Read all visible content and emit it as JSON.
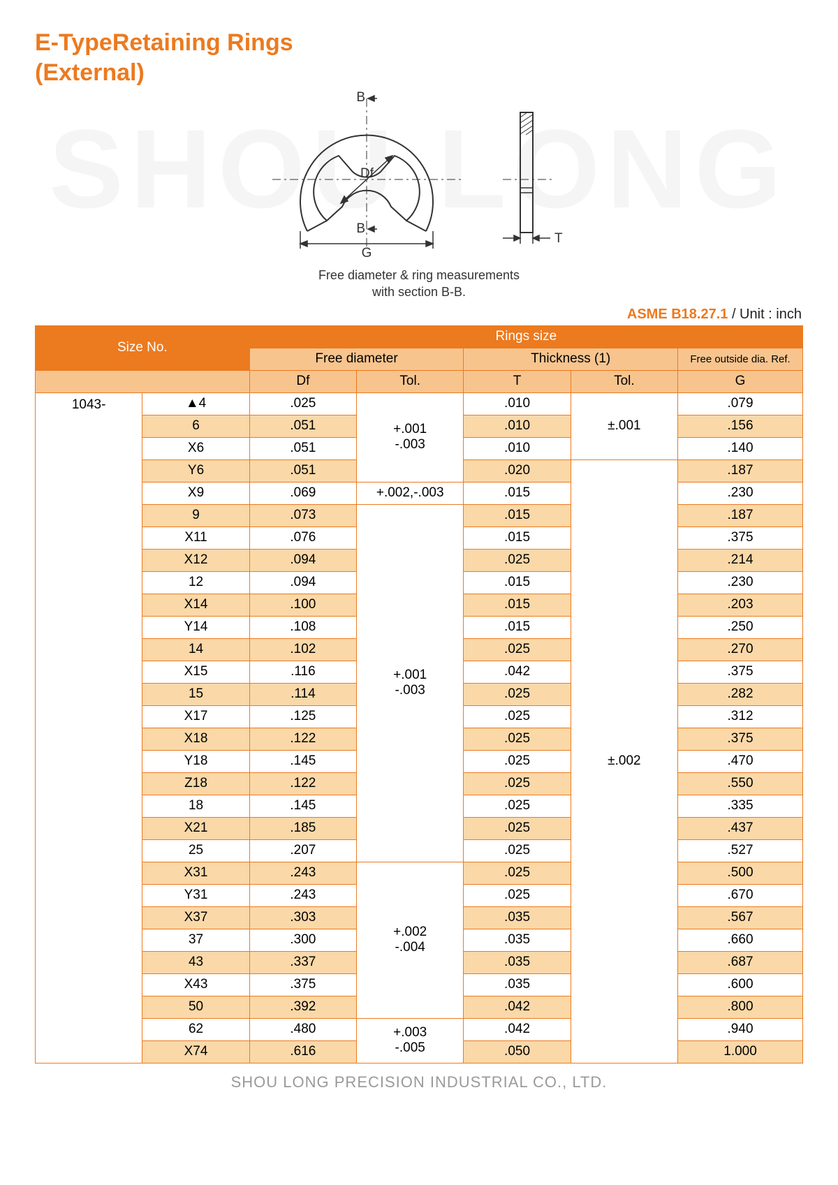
{
  "title_line1": "E-TypeRetaining Rings",
  "title_line2": "(External)",
  "watermark": "SHOU LONG",
  "diagram": {
    "label_B_top": "B",
    "label_B_bot": "B",
    "label_Df": "Df",
    "label_G": "G",
    "label_T": "T",
    "caption_l1": "Free diameter & ring measurements",
    "caption_l2": "with section B-B."
  },
  "standard": "ASME B18.27.1",
  "unit_text": " / Unit : inch",
  "headers": {
    "size_no": "Size No.",
    "rings_size": "Rings size",
    "free_diameter": "Free diameter",
    "thickness": "Thickness (1)",
    "free_outside": "Free outside dia. Ref.",
    "Df": "Df",
    "Tol": "Tol.",
    "T": "T",
    "G": "G"
  },
  "series": "1043-",
  "rows": [
    {
      "size": "▲4",
      "df": ".025",
      "t": ".010",
      "g": ".079",
      "shade": false
    },
    {
      "size": "6",
      "df": ".051",
      "t": ".010",
      "g": ".156",
      "shade": true
    },
    {
      "size": "X6",
      "df": ".051",
      "t": ".010",
      "g": ".140",
      "shade": false
    },
    {
      "size": "Y6",
      "df": ".051",
      "t": ".020",
      "g": ".187",
      "shade": true
    },
    {
      "size": "X9",
      "df": ".069",
      "t": ".015",
      "g": ".230",
      "shade": false
    },
    {
      "size": "9",
      "df": ".073",
      "t": ".015",
      "g": ".187",
      "shade": true
    },
    {
      "size": "X11",
      "df": ".076",
      "t": ".015",
      "g": ".375",
      "shade": false
    },
    {
      "size": "X12",
      "df": ".094",
      "t": ".025",
      "g": ".214",
      "shade": true
    },
    {
      "size": "12",
      "df": ".094",
      "t": ".015",
      "g": ".230",
      "shade": false
    },
    {
      "size": "X14",
      "df": ".100",
      "t": ".015",
      "g": ".203",
      "shade": true
    },
    {
      "size": "Y14",
      "df": ".108",
      "t": ".015",
      "g": ".250",
      "shade": false
    },
    {
      "size": "14",
      "df": ".102",
      "t": ".025",
      "g": ".270",
      "shade": true
    },
    {
      "size": "X15",
      "df": ".116",
      "t": ".042",
      "g": ".375",
      "shade": false
    },
    {
      "size": "15",
      "df": ".114",
      "t": ".025",
      "g": ".282",
      "shade": true
    },
    {
      "size": "X17",
      "df": ".125",
      "t": ".025",
      "g": ".312",
      "shade": false
    },
    {
      "size": "X18",
      "df": ".122",
      "t": ".025",
      "g": ".375",
      "shade": true
    },
    {
      "size": "Y18",
      "df": ".145",
      "t": ".025",
      "g": ".470",
      "shade": false
    },
    {
      "size": "Z18",
      "df": ".122",
      "t": ".025",
      "g": ".550",
      "shade": true
    },
    {
      "size": "18",
      "df": ".145",
      "t": ".025",
      "g": ".335",
      "shade": false
    },
    {
      "size": "X21",
      "df": ".185",
      "t": ".025",
      "g": ".437",
      "shade": true
    },
    {
      "size": "25",
      "df": ".207",
      "t": ".025",
      "g": ".527",
      "shade": false
    },
    {
      "size": "X31",
      "df": ".243",
      "t": ".025",
      "g": ".500",
      "shade": true
    },
    {
      "size": "Y31",
      "df": ".243",
      "t": ".025",
      "g": ".670",
      "shade": false
    },
    {
      "size": "X37",
      "df": ".303",
      "t": ".035",
      "g": ".567",
      "shade": true
    },
    {
      "size": "37",
      "df": ".300",
      "t": ".035",
      "g": ".660",
      "shade": false
    },
    {
      "size": "43",
      "df": ".337",
      "t": ".035",
      "g": ".687",
      "shade": true
    },
    {
      "size": "X43",
      "df": ".375",
      "t": ".035",
      "g": ".600",
      "shade": false
    },
    {
      "size": "50",
      "df": ".392",
      "t": ".042",
      "g": ".800",
      "shade": true
    },
    {
      "size": "62",
      "df": ".480",
      "t": ".042",
      "g": ".940",
      "shade": false
    },
    {
      "size": "X74",
      "df": ".616",
      "t": ".050",
      "g": "1.000",
      "shade": true
    }
  ],
  "df_tol_groups": [
    {
      "start": 0,
      "span": 4,
      "l1": "+.001",
      "l2": "-.003"
    },
    {
      "start": 4,
      "span": 1,
      "l1": "+.002,-.003",
      "l2": ""
    },
    {
      "start": 5,
      "span": 16,
      "l1": "+.001",
      "l2": "-.003"
    },
    {
      "start": 21,
      "span": 7,
      "l1": "+.002",
      "l2": "-.004"
    },
    {
      "start": 28,
      "span": 2,
      "l1": "+.003",
      "l2": "-.005"
    }
  ],
  "t_tol_groups": [
    {
      "start": 0,
      "span": 3,
      "text": "±.001"
    },
    {
      "start": 3,
      "span": 27,
      "text": "±.002"
    }
  ],
  "footer": "SHOU LONG PRECISION INDUSTRIAL CO., LTD.",
  "colors": {
    "accent": "#ec7a1f",
    "header_light": "#f7c48e",
    "row_shade": "#fad8a8",
    "watermark": "#f5f5f5",
    "footer_text": "#9a9a9a"
  }
}
